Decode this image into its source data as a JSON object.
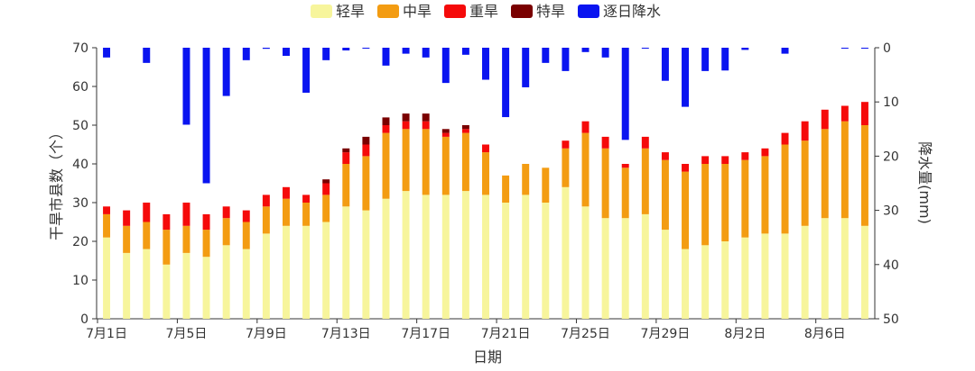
{
  "chart_data": {
    "type": "bar",
    "xlabel": "日期",
    "ylabel": "干旱市县数（个）",
    "y2label": "降水量(mm)",
    "ylim": [
      0,
      70
    ],
    "y2lim": [
      0,
      50
    ],
    "y2_inverted": true,
    "yticks": [
      0,
      10,
      20,
      30,
      40,
      50,
      60,
      70
    ],
    "y2ticks": [
      0,
      10,
      20,
      30,
      40,
      50
    ],
    "legend_position": "top-center",
    "categories": [
      "7月1日",
      "7月2日",
      "7月3日",
      "7月4日",
      "7月5日",
      "7月6日",
      "7月7日",
      "7月8日",
      "7月9日",
      "7月10日",
      "7月11日",
      "7月12日",
      "7月13日",
      "7月14日",
      "7月15日",
      "7月16日",
      "7月17日",
      "7月18日",
      "7月19日",
      "7月20日",
      "7月21日",
      "7月22日",
      "7月23日",
      "7月24日",
      "7月25日",
      "7月26日",
      "7月27日",
      "7月28日",
      "7月29日",
      "7月30日",
      "7月31日",
      "8月1日",
      "8月2日",
      "8月3日",
      "8月4日",
      "8月5日",
      "8月6日",
      "8月7日",
      "8月8日"
    ],
    "xtick_labels": [
      "7月1日",
      "7月5日",
      "7月9日",
      "7月13日",
      "7月17日",
      "7月21日",
      "7月25日",
      "7月29日",
      "8月2日",
      "8月6日"
    ],
    "xtick_every": 4,
    "stacked_series": [
      {
        "name": "轻旱",
        "color": "#f7f59c",
        "values": [
          21,
          17,
          18,
          14,
          17,
          16,
          19,
          18,
          22,
          24,
          24,
          25,
          29,
          28,
          31,
          33,
          32,
          32,
          33,
          32,
          30,
          32,
          30,
          34,
          29,
          26,
          26,
          27,
          23,
          18,
          19,
          20,
          21,
          22,
          22,
          24,
          26,
          26,
          24
        ]
      },
      {
        "name": "中旱",
        "color": "#f39c12",
        "values": [
          6,
          7,
          7,
          9,
          7,
          7,
          7,
          7,
          7,
          7,
          6,
          7,
          11,
          14,
          17,
          16,
          17,
          15,
          15,
          11,
          7,
          8,
          9,
          10,
          19,
          18,
          13,
          17,
          18,
          20,
          21,
          20,
          20,
          20,
          23,
          22,
          23,
          25,
          26
        ]
      },
      {
        "name": "重旱",
        "color": "#f50a0a",
        "values": [
          2,
          4,
          5,
          4,
          6,
          4,
          3,
          3,
          3,
          3,
          2,
          3,
          3,
          3,
          2,
          2,
          2,
          1,
          1,
          2,
          0,
          0,
          0,
          2,
          3,
          3,
          1,
          3,
          2,
          2,
          2,
          2,
          2,
          2,
          3,
          5,
          5,
          4,
          6
        ]
      },
      {
        "name": "特旱",
        "color": "#7a0000",
        "values": [
          0,
          0,
          0,
          0,
          0,
          0,
          0,
          0,
          0,
          0,
          0,
          1,
          1,
          2,
          2,
          2,
          2,
          1,
          1,
          0,
          0,
          0,
          0,
          0,
          0,
          0,
          0,
          0,
          0,
          0,
          0,
          0,
          0,
          0,
          0,
          0,
          0,
          0,
          0
        ]
      }
    ],
    "precip_series": {
      "name": "逐日降水",
      "color": "#0a14f0",
      "values": [
        1.8,
        0,
        2.8,
        0,
        14.2,
        25,
        8.9,
        2.3,
        0.2,
        1.5,
        8.3,
        2.3,
        0.5,
        0.1,
        3.3,
        1.1,
        1.8,
        6.5,
        1.3,
        5.9,
        12.8,
        7.3,
        2.8,
        4.3,
        0.8,
        1.8,
        17,
        0.1,
        6.1,
        10.9,
        4.3,
        4.2,
        0.4,
        0,
        1.1,
        0,
        0,
        0.1,
        0.1
      ]
    }
  }
}
